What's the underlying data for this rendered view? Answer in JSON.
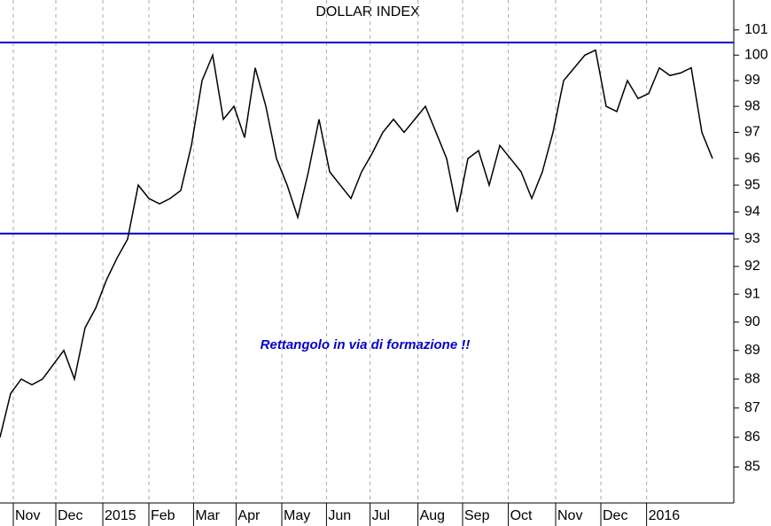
{
  "chart_data": {
    "type": "line",
    "title": "DOLLAR INDEX",
    "annotation": "Rettangolo in via di formazione !!",
    "x": [
      0,
      1,
      2,
      3,
      4,
      5,
      6,
      7,
      8,
      9,
      10,
      11,
      12,
      13,
      14,
      15,
      16,
      17,
      18,
      19,
      20,
      21,
      22,
      23,
      24,
      25,
      26,
      27,
      28,
      29,
      30,
      31,
      32,
      33,
      34,
      35,
      36,
      37,
      38,
      39,
      40,
      41,
      42,
      43,
      44,
      45,
      46,
      47,
      48,
      49,
      50,
      51,
      52,
      53,
      54,
      55,
      56,
      57,
      58,
      59,
      60,
      61,
      62,
      63,
      64,
      65,
      66,
      67
    ],
    "series": [
      {
        "name": "Dollar Index",
        "color": "#000000",
        "values": [
          86,
          87.5,
          88,
          87.8,
          88,
          88.5,
          89,
          88,
          89.8,
          90.5,
          91.5,
          92.3,
          93,
          95,
          94.5,
          94.3,
          94.5,
          94.8,
          96.5,
          99,
          100,
          97.5,
          98,
          96.8,
          99.5,
          98,
          96,
          95,
          93.8,
          95.5,
          97.5,
          95.5,
          95,
          94.5,
          95.5,
          96.2,
          97,
          97.5,
          97,
          97.5,
          98,
          97,
          96,
          94,
          96,
          96.3,
          95,
          96.5,
          96,
          95.5,
          94.5,
          95.5,
          97,
          99,
          99.5,
          100,
          100.2,
          98,
          97.8,
          99,
          98.3,
          98.5,
          99.5,
          99.2,
          99.3,
          99.5,
          97,
          96
        ]
      }
    ],
    "levels": [
      {
        "value": 100.5,
        "color": "#0000cc"
      },
      {
        "value": 93.2,
        "color": "#0000cc"
      }
    ],
    "xlim": [
      0,
      69
    ],
    "xticks": [
      {
        "value": 1.25,
        "label": "Nov"
      },
      {
        "value": 5.25,
        "label": "Dec"
      },
      {
        "value": 9.67,
        "label": "2015"
      },
      {
        "value": 14,
        "label": "Feb"
      },
      {
        "value": 18.2,
        "label": "Mar"
      },
      {
        "value": 22.2,
        "label": "Apr"
      },
      {
        "value": 26.5,
        "label": "May"
      },
      {
        "value": 30.7,
        "label": "Jun"
      },
      {
        "value": 34.8,
        "label": "Jul"
      },
      {
        "value": 39.3,
        "label": "Aug"
      },
      {
        "value": 43.5,
        "label": "Sep"
      },
      {
        "value": 47.8,
        "label": "Oct"
      },
      {
        "value": 52.25,
        "label": "Nov"
      },
      {
        "value": 56.5,
        "label": "Dec"
      },
      {
        "value": 60.8,
        "label": "2016"
      }
    ],
    "ylim": [
      83.8,
      102.2
    ],
    "log_scale": true,
    "yticks": [
      85,
      86,
      87,
      88,
      89,
      90,
      91,
      92,
      93,
      94,
      95,
      96,
      97,
      98,
      99,
      100,
      101
    ],
    "grid": true
  }
}
